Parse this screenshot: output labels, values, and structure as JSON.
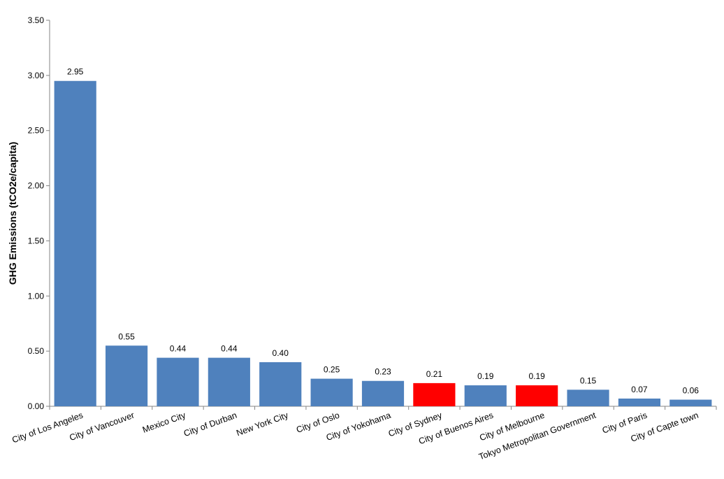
{
  "chart_data": {
    "type": "bar",
    "title": "",
    "xlabel": "",
    "ylabel": "GHG Emissions (tCO2e/capita)",
    "ylim": [
      0,
      3.5
    ],
    "yticks": [
      "0.00",
      "0.50",
      "1.00",
      "1.50",
      "2.00",
      "2.50",
      "3.00",
      "3.50"
    ],
    "grid": false,
    "legend": "none",
    "categories": [
      "City of Los Angeles",
      "City of Vancouver",
      "Mexico City",
      "City of Durban",
      "New York City",
      "City of Oslo",
      "City of Yokohama",
      "City of Sydney",
      "City of Buenos Aires",
      "City of Melbourne",
      "Tokyo Metropolitan Government",
      "City of Paris",
      "City of Capte town"
    ],
    "values": [
      2.95,
      0.55,
      0.44,
      0.44,
      0.4,
      0.25,
      0.23,
      0.21,
      0.19,
      0.19,
      0.15,
      0.07,
      0.06
    ],
    "value_labels": [
      "2.95",
      "0.55",
      "0.44",
      "0.44",
      "0.40",
      "0.25",
      "0.23",
      "0.21",
      "0.19",
      "0.19",
      "0.15",
      "0.07",
      "0.06"
    ],
    "bar_colors": [
      "#4F81BD",
      "#4F81BD",
      "#4F81BD",
      "#4F81BD",
      "#4F81BD",
      "#4F81BD",
      "#4F81BD",
      "#FF0000",
      "#4F81BD",
      "#FF0000",
      "#4F81BD",
      "#4F81BD",
      "#4F81BD"
    ]
  }
}
